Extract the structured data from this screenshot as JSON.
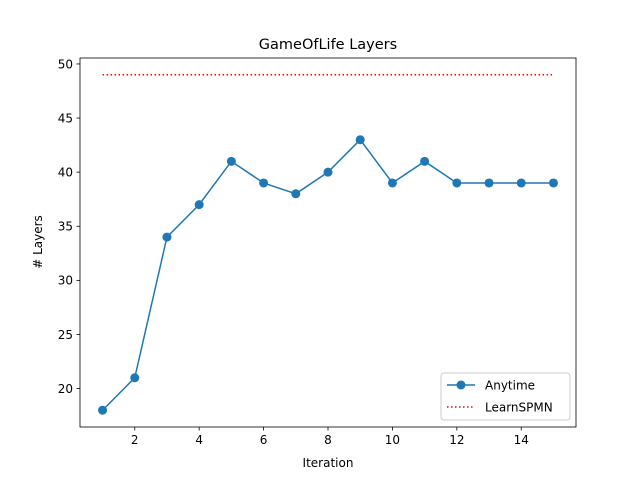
{
  "chart_data": {
    "type": "line",
    "title": "GameOfLife Layers",
    "xlabel": "Iteration",
    "ylabel": "# Layers",
    "xlim": [
      0.3,
      15.7
    ],
    "ylim": [
      16.45,
      50.55
    ],
    "xticks": [
      2,
      4,
      6,
      8,
      10,
      12,
      14
    ],
    "yticks": [
      20,
      25,
      30,
      35,
      40,
      45,
      50
    ],
    "grid": false,
    "legend_position": "lower right",
    "series": [
      {
        "name": "Anytime",
        "style": "solid line with circle markers",
        "color": "#1f77b4",
        "x": [
          1,
          2,
          3,
          4,
          5,
          6,
          7,
          8,
          9,
          10,
          11,
          12,
          13,
          14,
          15
        ],
        "y": [
          18,
          21,
          34,
          37,
          41,
          39,
          38,
          40,
          43,
          39,
          41,
          39,
          39,
          39,
          39
        ]
      },
      {
        "name": "LearnSPMN",
        "style": "dotted line",
        "color": "#ff0000",
        "x": [
          1,
          15
        ],
        "y": [
          49,
          49
        ]
      }
    ]
  }
}
